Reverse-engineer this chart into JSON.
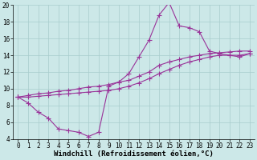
{
  "background_color": "#cce8e8",
  "line_color": "#993399",
  "marker": "+",
  "markersize": 4,
  "linewidth": 0.8,
  "xlabel": "Windchill (Refroidissement éolien,°C)",
  "xlabel_fontsize": 6.5,
  "xlim": [
    -0.5,
    23.5
  ],
  "ylim": [
    4,
    20
  ],
  "xticks": [
    0,
    1,
    2,
    3,
    4,
    5,
    6,
    7,
    8,
    9,
    10,
    11,
    12,
    13,
    14,
    15,
    16,
    17,
    18,
    19,
    20,
    21,
    22,
    23
  ],
  "yticks": [
    4,
    6,
    8,
    10,
    12,
    14,
    16,
    18,
    20
  ],
  "tick_fontsize": 5.5,
  "grid_color": "#a8cccc",
  "series": [
    {
      "x": [
        0,
        1,
        2,
        3,
        4,
        5,
        6,
        7,
        8,
        9,
        10,
        11,
        12,
        13,
        14,
        15,
        16,
        17,
        18,
        19,
        20,
        21,
        22,
        23
      ],
      "y": [
        9.0,
        8.3,
        7.2,
        6.5,
        5.2,
        5.0,
        4.8,
        4.3,
        4.8,
        10.3,
        10.8,
        11.8,
        13.8,
        15.8,
        18.8,
        20.3,
        17.5,
        17.3,
        16.8,
        14.5,
        14.2,
        14.0,
        13.8,
        14.2
      ]
    },
    {
      "x": [
        0,
        1,
        2,
        3,
        4,
        5,
        6,
        7,
        8,
        9,
        10,
        11,
        12,
        13,
        14,
        15,
        16,
        17,
        18,
        19,
        20,
        21,
        22,
        23
      ],
      "y": [
        9.0,
        9.2,
        9.4,
        9.5,
        9.7,
        9.8,
        10.0,
        10.2,
        10.3,
        10.5,
        10.8,
        11.0,
        11.5,
        12.0,
        12.8,
        13.2,
        13.5,
        13.8,
        14.0,
        14.2,
        14.3,
        14.4,
        14.5,
        14.5
      ]
    },
    {
      "x": [
        0,
        1,
        2,
        3,
        4,
        5,
        6,
        7,
        8,
        9,
        10,
        11,
        12,
        13,
        14,
        15,
        16,
        17,
        18,
        19,
        20,
        21,
        22,
        23
      ],
      "y": [
        9.0,
        9.0,
        9.1,
        9.2,
        9.3,
        9.4,
        9.5,
        9.6,
        9.7,
        9.8,
        10.0,
        10.3,
        10.7,
        11.2,
        11.8,
        12.3,
        12.8,
        13.2,
        13.5,
        13.8,
        14.0,
        14.0,
        14.0,
        14.2
      ]
    }
  ]
}
